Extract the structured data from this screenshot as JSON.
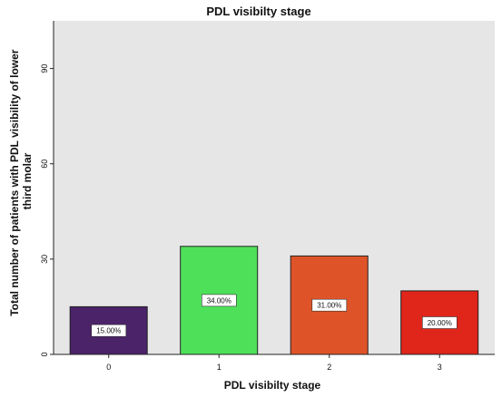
{
  "chart_data": {
    "type": "bar",
    "title": "PDL visibilty stage",
    "xlabel": "PDL visibilty stage",
    "ylabel": "Total number of patients with PDL visibility of lower third molar",
    "categories": [
      "0",
      "1",
      "2",
      "3"
    ],
    "values": [
      15,
      34,
      31,
      20
    ],
    "data_labels": [
      "15.00%",
      "34.00%",
      "31.00%",
      "20.00%"
    ],
    "yticks": [
      "0",
      "30",
      "60",
      "90"
    ],
    "ylim": [
      0,
      105
    ],
    "grid": false,
    "colors": {
      "plot_background": "#e6e6e6",
      "bars": [
        "#4b2369",
        "#4fe05a",
        "#de5428",
        "#e0251a"
      ]
    }
  }
}
